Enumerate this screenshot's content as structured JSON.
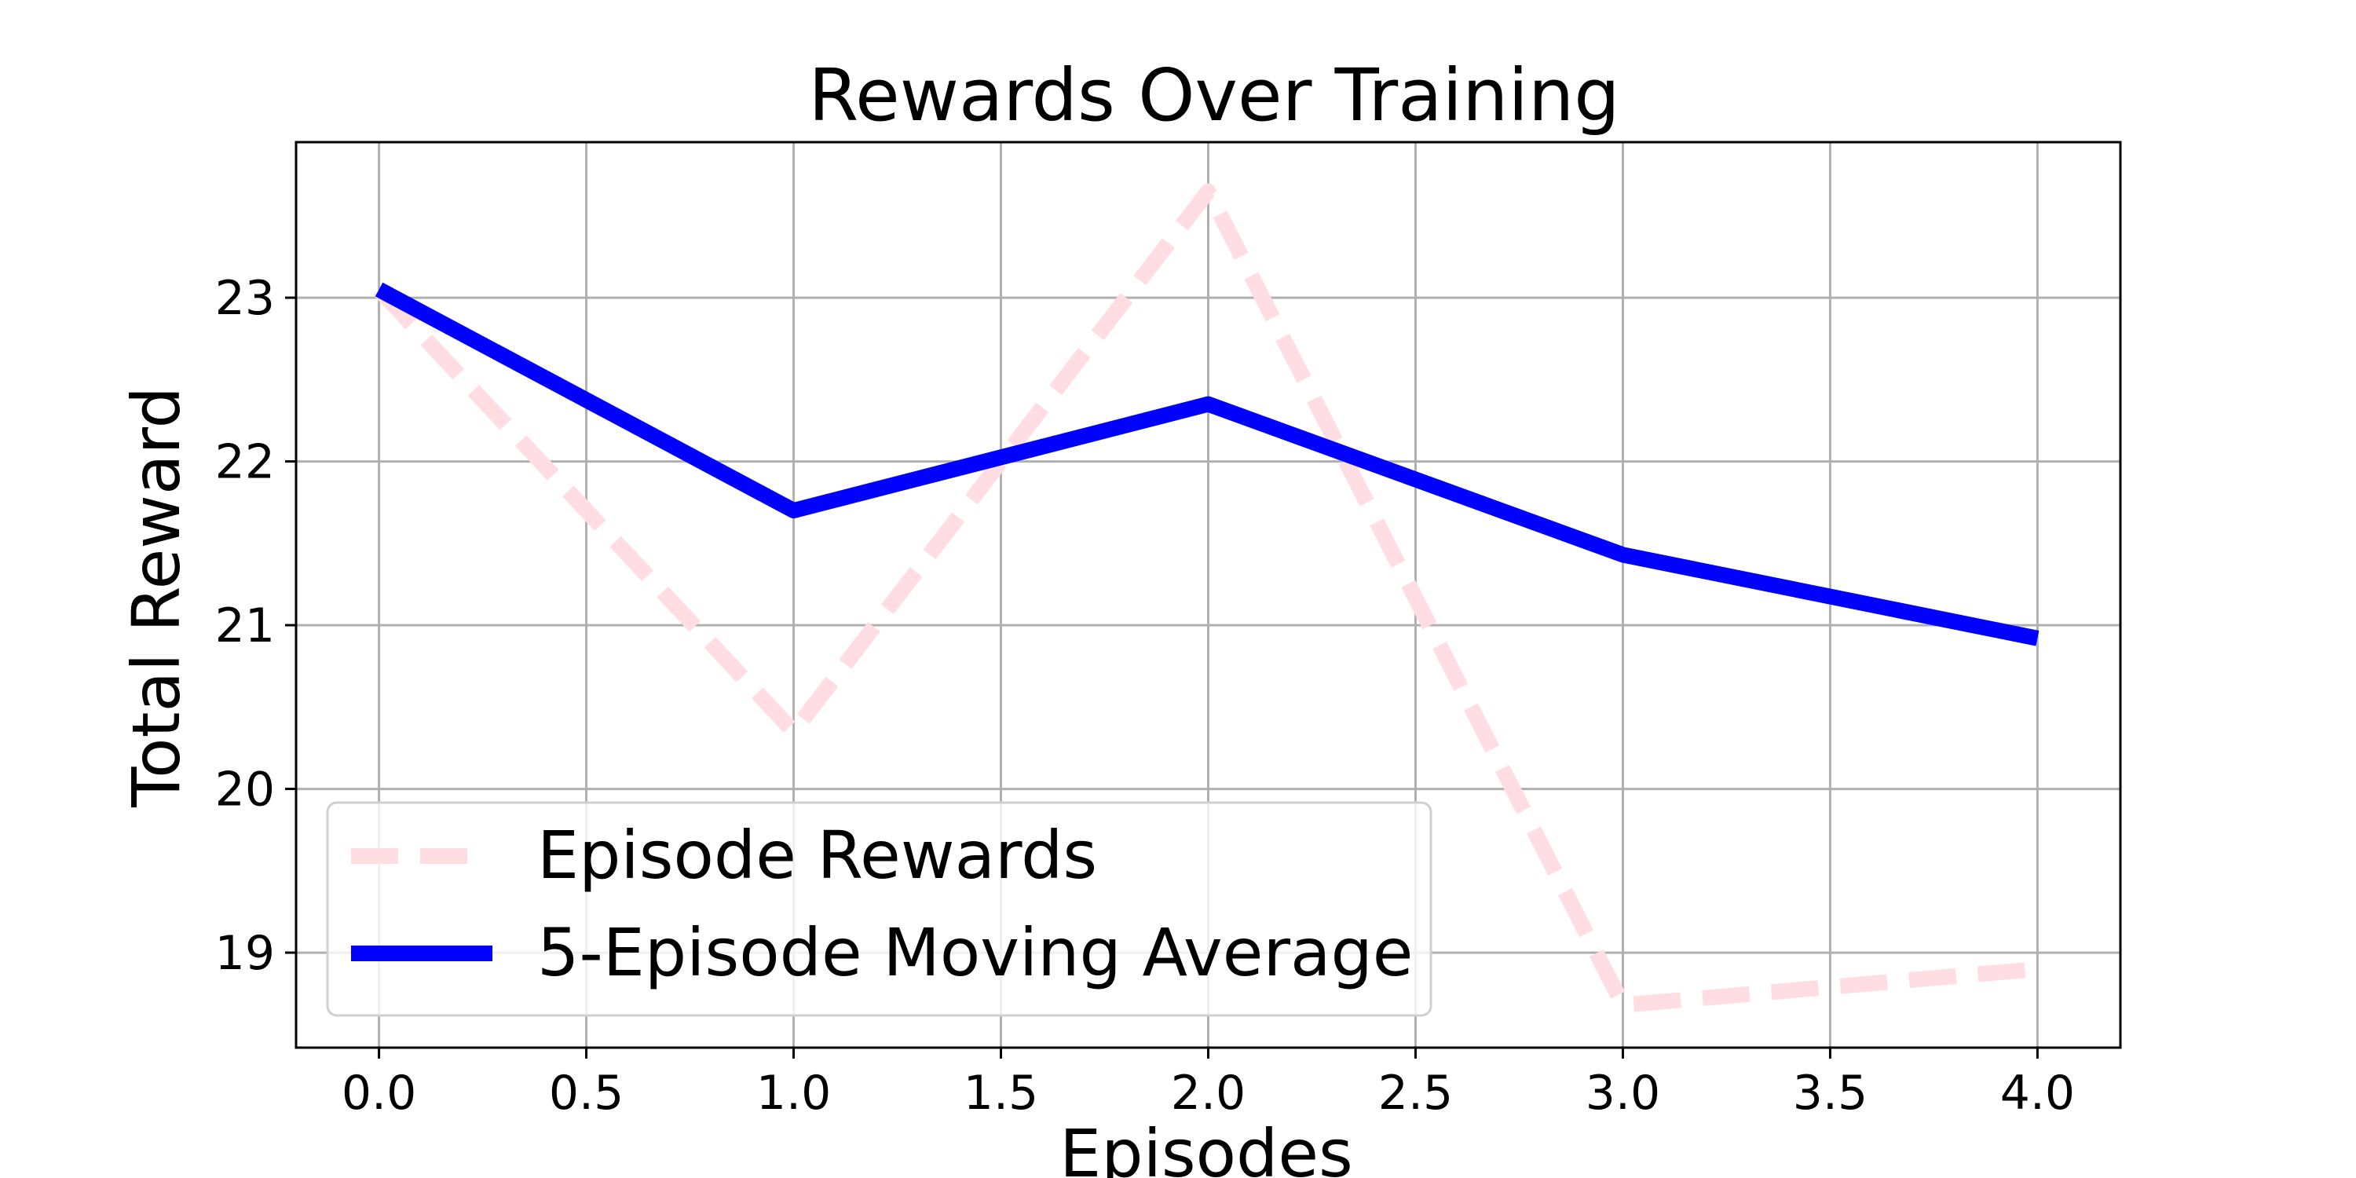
{
  "chart_data": {
    "type": "line",
    "title": "Rewards Over Training",
    "xlabel": "Episodes",
    "ylabel": "Total Reward",
    "x": [
      0,
      1,
      2,
      3,
      4
    ],
    "xlim": [
      -0.2,
      4.2
    ],
    "ylim": [
      18.42,
      23.95
    ],
    "x_ticks": [
      0.0,
      0.5,
      1.0,
      1.5,
      2.0,
      2.5,
      3.0,
      3.5,
      4.0
    ],
    "x_tick_labels": [
      "0.0",
      "0.5",
      "1.0",
      "1.5",
      "2.0",
      "2.5",
      "3.0",
      "3.5",
      "4.0"
    ],
    "y_ticks": [
      19,
      20,
      21,
      22,
      23
    ],
    "y_tick_labels": [
      "19",
      "20",
      "21",
      "22",
      "23"
    ],
    "grid": true,
    "legend_position": "lower-left",
    "series": [
      {
        "name": "Episode Rewards",
        "values": [
          23.05,
          20.35,
          23.65,
          18.68,
          18.9
        ],
        "color": "#ffdde2",
        "style": "dashed"
      },
      {
        "name": "5-Episode Moving Average",
        "values": [
          23.05,
          21.7,
          22.35,
          21.43,
          20.92
        ],
        "color": "#0000ff",
        "style": "solid"
      }
    ]
  }
}
